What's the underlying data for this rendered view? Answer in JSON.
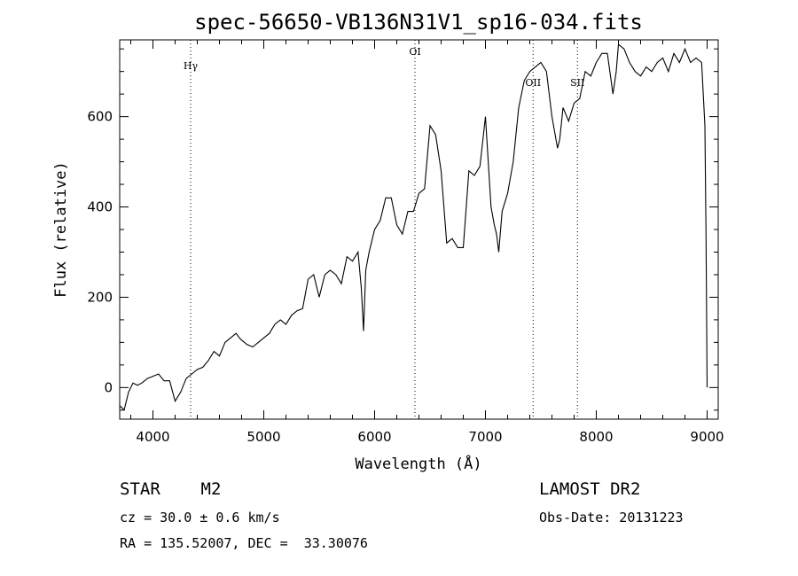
{
  "chart_data": {
    "type": "line",
    "title": "spec-56650-VB136N31V1_sp16-034.fits",
    "xlabel": "Wavelength (Å)",
    "ylabel": "Flux (relative)",
    "xlim": [
      3700,
      9100
    ],
    "ylim": [
      -70,
      770
    ],
    "xticks": [
      4000,
      5000,
      6000,
      7000,
      8000,
      9000
    ],
    "yticks": [
      0,
      200,
      400,
      600
    ],
    "grid": false,
    "lines": [
      {
        "label": "Hγ",
        "x": 4340
      },
      {
        "label": "OI",
        "x": 6364
      },
      {
        "label": "OII",
        "x": 7430
      },
      {
        "label": "SII",
        "x": 7830
      }
    ],
    "series": [
      {
        "x": [
          3700,
          3740,
          3780,
          3820,
          3860,
          3900,
          3950,
          4000,
          4050,
          4100,
          4150,
          4200,
          4250,
          4300,
          4350,
          4400,
          4450,
          4500,
          4550,
          4600,
          4650,
          4700,
          4750,
          4780,
          4800,
          4850,
          4900,
          4950,
          5000,
          5050,
          5100,
          5150,
          5200,
          5250,
          5300,
          5350,
          5400,
          5450,
          5500,
          5550,
          5600,
          5650,
          5700,
          5750,
          5800,
          5850,
          5880,
          5900,
          5920,
          5950,
          6000,
          6050,
          6100,
          6150,
          6200,
          6250,
          6300,
          6350,
          6400,
          6450,
          6500,
          6550,
          6600,
          6650,
          6700,
          6750,
          6800,
          6850,
          6900,
          6950,
          7000,
          7050,
          7080,
          7100,
          7120,
          7150,
          7200,
          7250,
          7300,
          7350,
          7400,
          7450,
          7500,
          7550,
          7600,
          7650,
          7670,
          7700,
          7750,
          7800,
          7850,
          7900,
          7950,
          8000,
          8050,
          8100,
          8150,
          8180,
          8200,
          8250,
          8300,
          8350,
          8400,
          8450,
          8500,
          8550,
          8600,
          8650,
          8700,
          8750,
          8800,
          8850,
          8900,
          8950,
          8980,
          8990,
          9000
        ],
        "values": [
          -40,
          -50,
          -10,
          10,
          5,
          10,
          20,
          25,
          30,
          15,
          15,
          -30,
          -10,
          20,
          30,
          40,
          45,
          60,
          80,
          70,
          100,
          110,
          120,
          110,
          105,
          95,
          90,
          100,
          110,
          120,
          140,
          150,
          140,
          160,
          170,
          175,
          240,
          250,
          200,
          250,
          260,
          250,
          230,
          290,
          280,
          300,
          220,
          125,
          260,
          300,
          350,
          370,
          420,
          420,
          360,
          340,
          390,
          390,
          430,
          440,
          580,
          560,
          480,
          320,
          330,
          310,
          310,
          480,
          470,
          490,
          600,
          400,
          360,
          340,
          300,
          390,
          430,
          500,
          620,
          680,
          700,
          710,
          720,
          700,
          600,
          530,
          550,
          620,
          590,
          630,
          640,
          700,
          690,
          720,
          740,
          740,
          650,
          700,
          760,
          750,
          720,
          700,
          690,
          710,
          700,
          720,
          730,
          700,
          740,
          720,
          750,
          720,
          730,
          720,
          580,
          330,
          0
        ]
      }
    ]
  },
  "footer": {
    "object": "STAR    M2",
    "survey": "LAMOST DR2",
    "cz": "cz = 30.0 ± 0.6 km/s",
    "obs_date": "Obs-Date: 20131223",
    "coords": "RA = 135.52007, DEC =  33.30076"
  }
}
